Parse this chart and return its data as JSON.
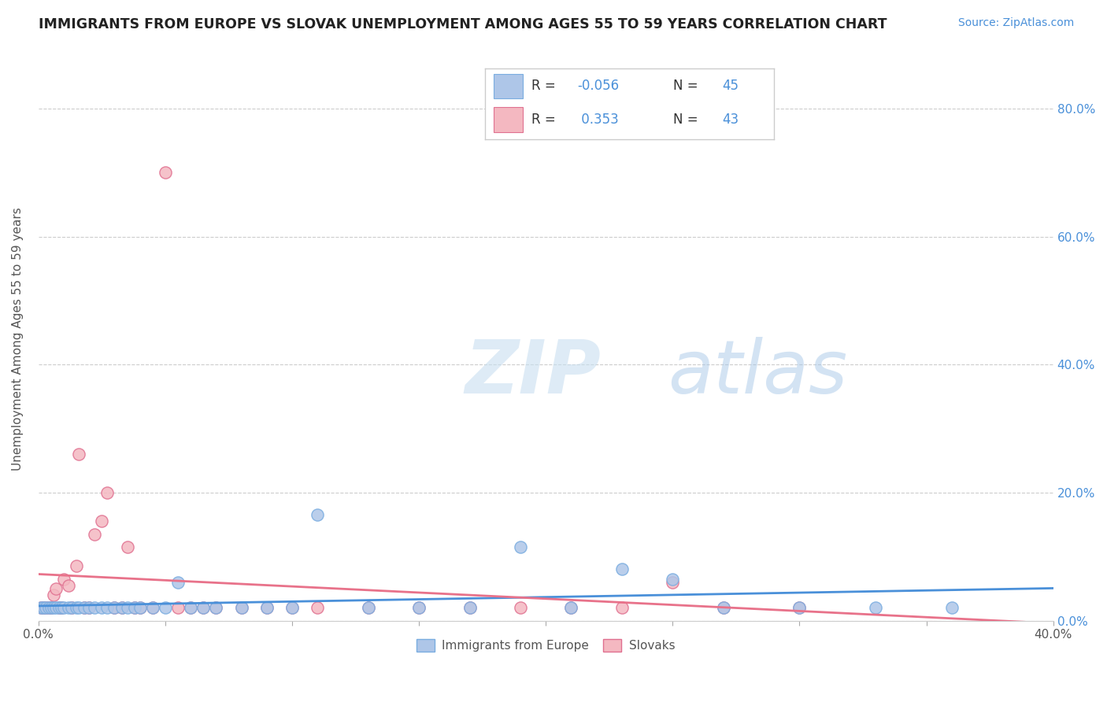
{
  "title": "IMMIGRANTS FROM EUROPE VS SLOVAK UNEMPLOYMENT AMONG AGES 55 TO 59 YEARS CORRELATION CHART",
  "source_text": "Source: ZipAtlas.com",
  "ylabel": "Unemployment Among Ages 55 to 59 years",
  "xlim": [
    0.0,
    0.4
  ],
  "ylim": [
    0.0,
    0.88
  ],
  "x_ticks": [
    0.0,
    0.05,
    0.1,
    0.15,
    0.2,
    0.25,
    0.3,
    0.35,
    0.4
  ],
  "y_ticks_right": [
    0.0,
    0.2,
    0.4,
    0.6,
    0.8
  ],
  "y_tick_labels_right": [
    "0.0%",
    "20.0%",
    "40.0%",
    "60.0%",
    "80.0%"
  ],
  "grid_color": "#cccccc",
  "background_color": "#ffffff",
  "blue_color": "#aec6e8",
  "pink_color": "#f4b8c1",
  "blue_line_color": "#4a90d9",
  "pink_line_color": "#e8728a",
  "blue_dot_edge": "#7aade0",
  "pink_dot_edge": "#e07090",
  "R_blue": -0.056,
  "N_blue": 45,
  "R_pink": 0.353,
  "N_pink": 43,
  "legend_label_blue": "Immigrants from Europe",
  "legend_label_pink": "Slovaks",
  "watermark_zip": "ZIP",
  "watermark_atlas": "atlas",
  "blue_scatter_x": [
    0.001,
    0.002,
    0.003,
    0.004,
    0.005,
    0.006,
    0.007,
    0.008,
    0.009,
    0.01,
    0.012,
    0.013,
    0.015,
    0.016,
    0.018,
    0.02,
    0.022,
    0.025,
    0.027,
    0.03,
    0.033,
    0.035,
    0.038,
    0.04,
    0.045,
    0.05,
    0.055,
    0.06,
    0.065,
    0.07,
    0.08,
    0.09,
    0.1,
    0.11,
    0.13,
    0.15,
    0.17,
    0.19,
    0.21,
    0.23,
    0.25,
    0.27,
    0.3,
    0.33,
    0.36
  ],
  "blue_scatter_y": [
    0.02,
    0.02,
    0.02,
    0.02,
    0.02,
    0.02,
    0.02,
    0.02,
    0.02,
    0.02,
    0.02,
    0.02,
    0.02,
    0.02,
    0.02,
    0.02,
    0.02,
    0.02,
    0.02,
    0.02,
    0.02,
    0.02,
    0.02,
    0.02,
    0.02,
    0.02,
    0.06,
    0.02,
    0.02,
    0.02,
    0.02,
    0.02,
    0.02,
    0.165,
    0.02,
    0.02,
    0.02,
    0.115,
    0.02,
    0.08,
    0.065,
    0.02,
    0.02,
    0.02,
    0.02
  ],
  "pink_scatter_x": [
    0.001,
    0.002,
    0.003,
    0.004,
    0.005,
    0.006,
    0.007,
    0.008,
    0.009,
    0.01,
    0.012,
    0.013,
    0.015,
    0.016,
    0.018,
    0.02,
    0.022,
    0.025,
    0.027,
    0.03,
    0.033,
    0.035,
    0.038,
    0.04,
    0.045,
    0.05,
    0.055,
    0.06,
    0.065,
    0.07,
    0.08,
    0.09,
    0.1,
    0.11,
    0.13,
    0.15,
    0.17,
    0.19,
    0.21,
    0.23,
    0.25,
    0.27,
    0.3
  ],
  "pink_scatter_y": [
    0.02,
    0.02,
    0.02,
    0.02,
    0.02,
    0.04,
    0.05,
    0.02,
    0.02,
    0.065,
    0.055,
    0.02,
    0.085,
    0.26,
    0.02,
    0.02,
    0.135,
    0.155,
    0.2,
    0.02,
    0.02,
    0.115,
    0.02,
    0.02,
    0.02,
    0.7,
    0.02,
    0.02,
    0.02,
    0.02,
    0.02,
    0.02,
    0.02,
    0.02,
    0.02,
    0.02,
    0.02,
    0.02,
    0.02,
    0.02,
    0.06,
    0.02,
    0.02
  ]
}
